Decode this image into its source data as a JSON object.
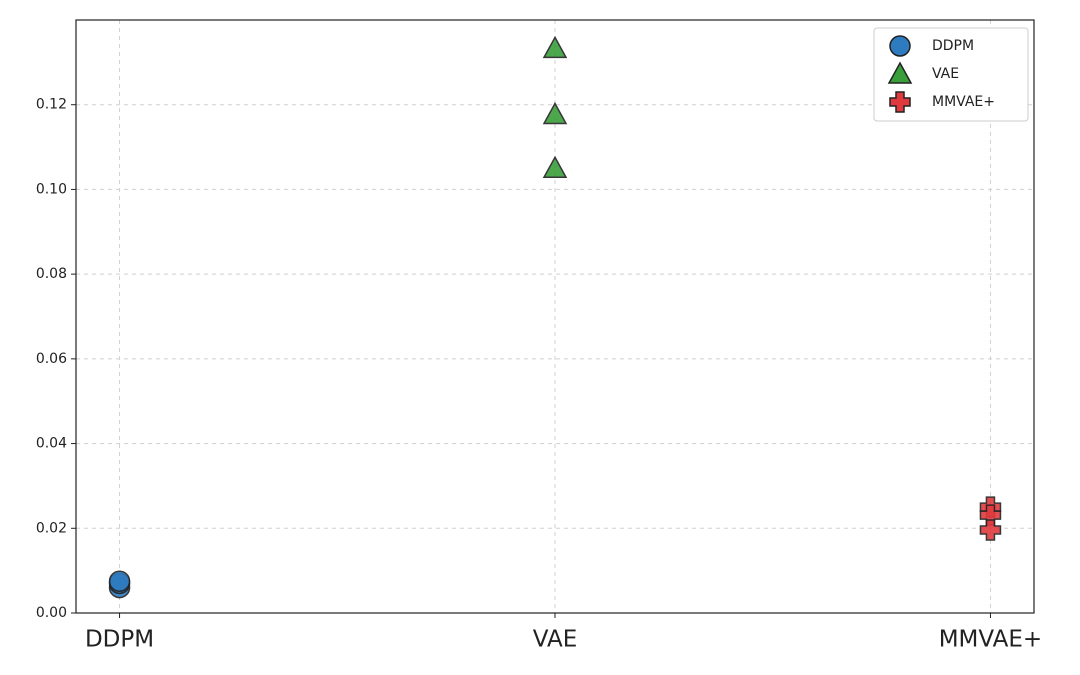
{
  "chart_data": {
    "type": "scatter",
    "categories": [
      "DDPM",
      "VAE",
      "MMVAE+"
    ],
    "series": [
      {
        "name": "DDPM",
        "color": "#2e7bbf",
        "marker": "circle",
        "values": [
          0.006,
          0.007,
          0.0075
        ]
      },
      {
        "name": "VAE",
        "color": "#3a9e3a",
        "marker": "triangle",
        "values": [
          0.1333,
          0.1177,
          0.105
        ]
      },
      {
        "name": "MMVAE+",
        "color": "#e03a3e",
        "marker": "plus",
        "values": [
          0.025,
          0.0231,
          0.0196
        ]
      }
    ],
    "xlim": [
      -0.1,
      2.1
    ],
    "ylim": [
      0,
      0.14
    ],
    "yticks": [
      {
        "value": 0,
        "label": "0.00"
      },
      {
        "value": 0.02,
        "label": "0.02"
      },
      {
        "value": 0.04,
        "label": "0.04"
      },
      {
        "value": 0.06,
        "label": "0.06"
      },
      {
        "value": 0.08,
        "label": "0.08"
      },
      {
        "value": 0.1,
        "label": "0.10"
      },
      {
        "value": 0.12,
        "label": "0.12"
      }
    ],
    "grid": true,
    "legend": "upper right"
  }
}
